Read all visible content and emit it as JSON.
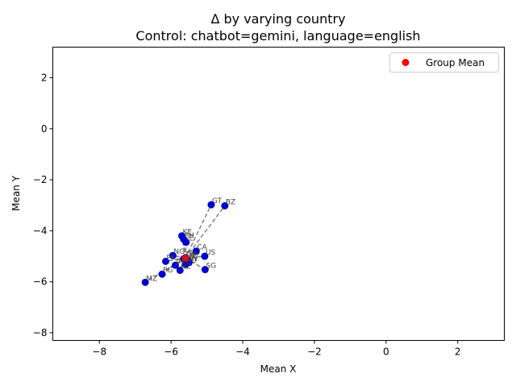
{
  "chart_data": {
    "type": "scatter",
    "title": "Δ by varying country",
    "subtitle": "Control: chatbot=gemini, language=english",
    "xlabel": "Mean X",
    "ylabel": "Mean Y",
    "xlim": [
      -9.3,
      3.3
    ],
    "ylim": [
      -8.3,
      3.2
    ],
    "xticks": [
      -8,
      -6,
      -4,
      -2,
      0,
      2
    ],
    "yticks": [
      -8,
      -6,
      -4,
      -2,
      0,
      2
    ],
    "legend": {
      "placement": "top-right",
      "entries": [
        {
          "label": "Group Mean",
          "color": "#ff0000",
          "marker": "circle"
        }
      ]
    },
    "group_mean": {
      "x": -5.6,
      "y": -5.07
    },
    "points": [
      {
        "label": "GT",
        "x": -4.88,
        "y": -2.98
      },
      {
        "label": "BZ",
        "x": -4.5,
        "y": -3.02
      },
      {
        "label": "KE",
        "x": -5.7,
        "y": -4.2
      },
      {
        "label": "PH",
        "x": -5.65,
        "y": -4.33
      },
      {
        "label": "IE",
        "x": -5.58,
        "y": -4.45
      },
      {
        "label": "CA",
        "x": -5.3,
        "y": -4.8
      },
      {
        "label": "US",
        "x": -5.06,
        "y": -5.0
      },
      {
        "label": "NG",
        "x": -5.95,
        "y": -4.97
      },
      {
        "label": "GB",
        "x": -5.6,
        "y": -5.05
      },
      {
        "label": "ZA",
        "x": -5.65,
        "y": -5.1
      },
      {
        "label": "MT",
        "x": -5.52,
        "y": -5.16
      },
      {
        "label": "IN",
        "x": -5.5,
        "y": -5.25
      },
      {
        "label": "PK",
        "x": -6.15,
        "y": -5.2
      },
      {
        "label": "JM",
        "x": -5.88,
        "y": -5.35
      },
      {
        "label": "AU",
        "x": -5.6,
        "y": -5.32
      },
      {
        "label": "NZ",
        "x": -5.75,
        "y": -5.55
      },
      {
        "label": "SG",
        "x": -5.05,
        "y": -5.52
      },
      {
        "label": "PG",
        "x": -6.25,
        "y": -5.7
      },
      {
        "label": "MZ",
        "x": -6.72,
        "y": -6.02
      }
    ],
    "dashed_links_from_group_mean": [
      "GT",
      "BZ",
      "KE",
      "PH",
      "IE",
      "CA",
      "US",
      "NG",
      "MT",
      "IN",
      "PK",
      "JM",
      "AU",
      "NZ",
      "SG",
      "PG",
      "MZ"
    ],
    "colors": {
      "points": "#0000cc",
      "group_mean": "#ff0000",
      "links": "#808080"
    }
  }
}
